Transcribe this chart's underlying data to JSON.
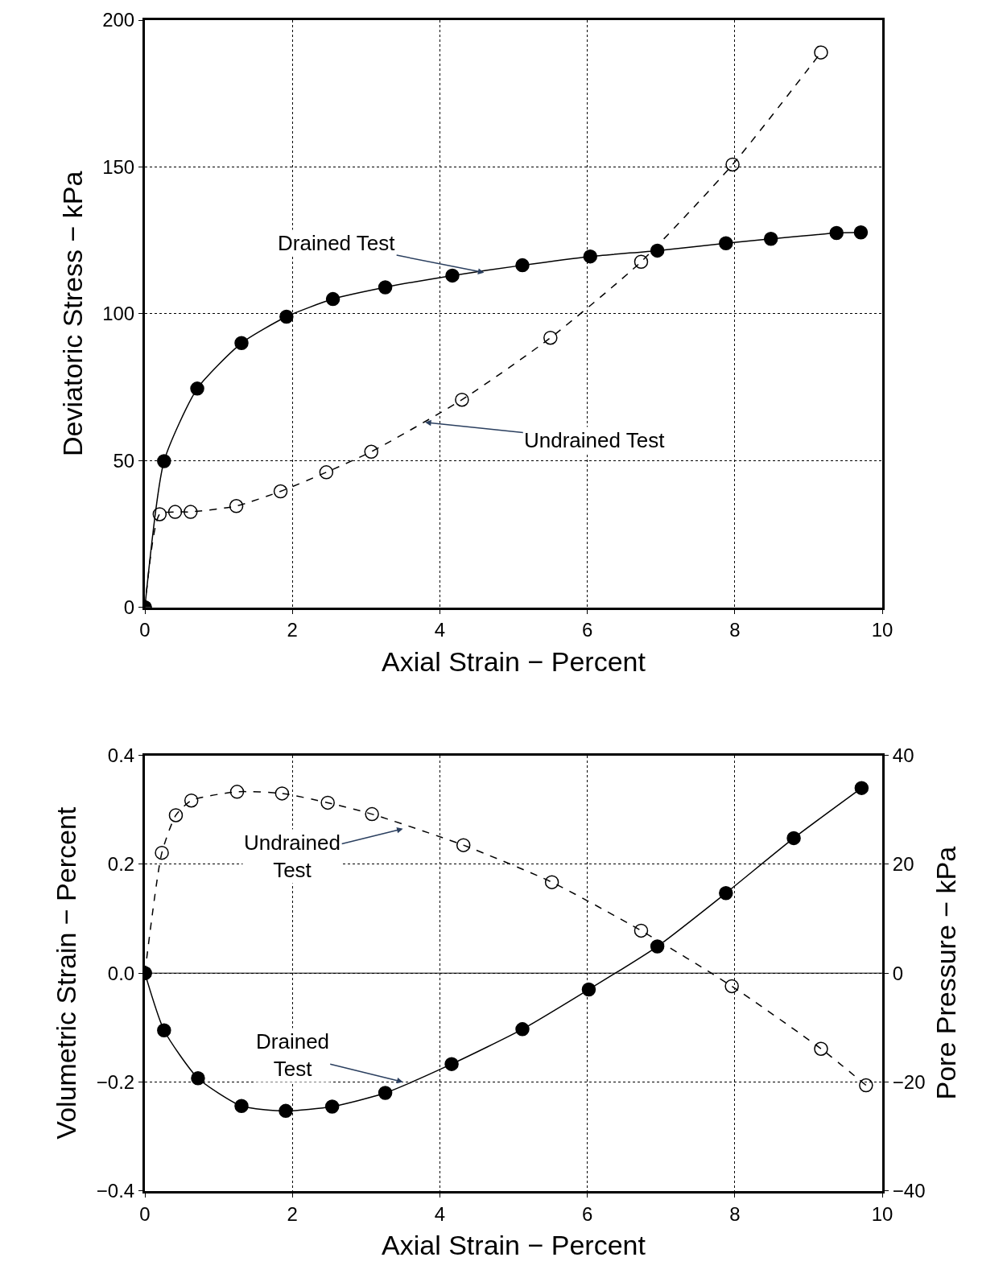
{
  "chart_data": [
    {
      "type": "line",
      "xlabel": "Axial Strain − Percent",
      "ylabel": "Deviatoric Stress − kPa",
      "xlim": [
        0,
        10
      ],
      "xticks": [
        0,
        2,
        4,
        6,
        8,
        10
      ],
      "ylim": [
        0,
        200
      ],
      "yticks": [
        0,
        50,
        100,
        150,
        200
      ],
      "grid": true,
      "series": [
        {
          "color": "#000000",
          "marker": "circle",
          "line_style": "solid",
          "x": [
            0,
            0.26,
            0.71,
            1.31,
            1.92,
            2.55,
            3.26,
            4.17,
            5.12,
            6.04,
            6.95,
            7.88,
            8.49,
            9.38,
            9.71
          ],
          "values": [
            0,
            49.8,
            74.5,
            90,
            99,
            105,
            109,
            113,
            116.5,
            119.5,
            121.5,
            124,
            125.5,
            127.5,
            127.7
          ]
        },
        {
          "color": "#000000",
          "marker": "circle-open",
          "line_style": "dashed",
          "x": [
            0,
            0.2,
            0.41,
            0.62,
            1.24,
            1.84,
            2.46,
            3.07,
            4.3,
            5.5,
            6.73,
            7.97,
            9.17
          ],
          "values": [
            0,
            31.7,
            32.5,
            32.5,
            34.5,
            39.5,
            46,
            53,
            70.7,
            91.8,
            117.7,
            150.8,
            189
          ]
        }
      ],
      "annotations": [
        {
          "text": "Drained Test",
          "x": 4.6,
          "y": 114
        },
        {
          "text": "Undrained Test",
          "x": 3.8,
          "y": 63
        }
      ]
    },
    {
      "type": "line",
      "xlabel": "Axial Strain − Percent",
      "ylabel": "Volumetric Strain − Percent",
      "y2label": "Pore Pressure − kPa",
      "xlim": [
        0,
        10
      ],
      "xticks": [
        0,
        2,
        4,
        6,
        8,
        10
      ],
      "ylim": [
        -0.4,
        0.4
      ],
      "yticks": [
        {
          "value": -0.4,
          "label": "−0.4"
        },
        {
          "value": -0.2,
          "label": "−0.2"
        },
        {
          "value": 0,
          "label": "0.0"
        },
        0.2,
        0.4
      ],
      "y2lim": [
        -40,
        40
      ],
      "y2ticks": [
        {
          "value": -40,
          "label": "−40"
        },
        {
          "value": -20,
          "label": "−20"
        },
        0,
        20,
        40
      ],
      "grid": true,
      "ref_lines": [
        {
          "axis": "y",
          "value": 0,
          "line_style": "solid"
        }
      ],
      "series": [
        {
          "color": "#000000",
          "marker": "circle-open",
          "line_style": "dashed",
          "axis": "y2",
          "x": [
            0,
            0.23,
            0.42,
            0.63,
            1.25,
            1.86,
            2.48,
            3.08,
            4.32,
            5.52,
            6.73,
            7.96,
            9.17,
            9.78
          ],
          "values": [
            0,
            22.1,
            29,
            31.7,
            33.3,
            33,
            31.3,
            29.2,
            23.5,
            16.7,
            7.8,
            -2.4,
            -13.9,
            -20.6
          ]
        },
        {
          "color": "#000000",
          "marker": "circle",
          "line_style": "solid",
          "x": [
            0,
            0.26,
            0.72,
            1.31,
            1.91,
            2.54,
            3.26,
            4.16,
            5.12,
            6.02,
            6.95,
            7.88,
            8.8,
            9.72
          ],
          "values": [
            0,
            -0.105,
            -0.193,
            -0.244,
            -0.253,
            -0.245,
            -0.22,
            -0.167,
            -0.103,
            -0.03,
            0.049,
            0.147,
            0.248,
            0.34
          ]
        }
      ],
      "annotations": [
        {
          "text": "Undrained\nTest",
          "x": 3.5,
          "y": 0.265
        },
        {
          "text": "Drained\nTest",
          "x": 3.5,
          "y": -0.2
        }
      ]
    }
  ]
}
